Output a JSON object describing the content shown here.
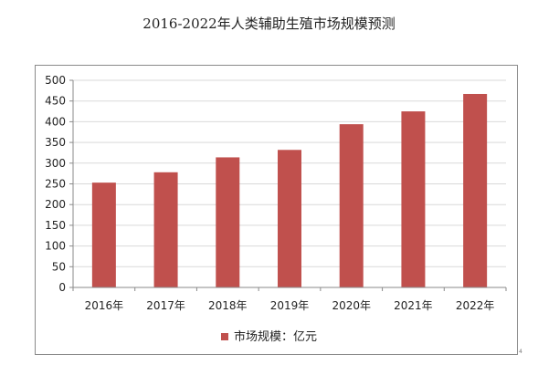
{
  "chart_data": {
    "type": "bar",
    "title": "2016-2022年人类辅助生殖市场规模预测",
    "categories": [
      "2016年",
      "2017年",
      "2018年",
      "2019年",
      "2020年",
      "2021年",
      "2022年"
    ],
    "series": [
      {
        "name": "市场规模：亿元",
        "values": [
          253,
          278,
          314,
          332,
          394,
          425,
          467
        ]
      }
    ],
    "ylim": [
      0,
      500
    ],
    "yticks": [
      0,
      50,
      100,
      150,
      200,
      250,
      300,
      350,
      400,
      450,
      500
    ],
    "grid": true,
    "legend": "bottom-center",
    "colors": {
      "bar": "#C0504D",
      "grid": "#d9d9d9",
      "axis": "#8a8a8a"
    }
  },
  "corner_mark": "4"
}
